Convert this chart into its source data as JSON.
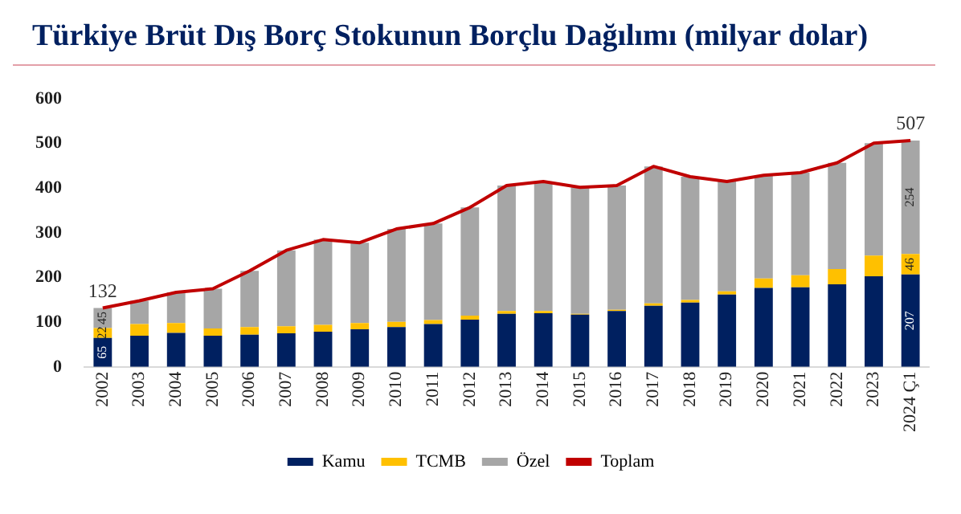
{
  "chart_data": {
    "type": "bar",
    "title": "Türkiye Brüt Dış Borç Stokunun Borçlu Dağılımı (milyar dolar)",
    "categories": [
      "2002",
      "2003",
      "2004",
      "2005",
      "2006",
      "2007",
      "2008",
      "2009",
      "2010",
      "2011",
      "2012",
      "2013",
      "2014",
      "2015",
      "2016",
      "2017",
      "2018",
      "2019",
      "2020",
      "2021",
      "2022",
      "2023",
      "2024 Ç1"
    ],
    "stacked": true,
    "ylim": [
      0,
      600
    ],
    "yticks": [
      0,
      100,
      200,
      300,
      400,
      500,
      600
    ],
    "grid": false,
    "legend": "bottom",
    "series": [
      {
        "name": "Kamu",
        "color": "#002060",
        "values": [
          65,
          70,
          76,
          70,
          72,
          75,
          79,
          84,
          89,
          96,
          106,
          119,
          120,
          117,
          125,
          137,
          144,
          162,
          177,
          178,
          185,
          203,
          207
        ],
        "value_labels": [
          "65",
          null,
          null,
          null,
          null,
          null,
          null,
          null,
          null,
          null,
          null,
          null,
          null,
          null,
          null,
          null,
          null,
          null,
          null,
          null,
          null,
          null,
          "207"
        ]
      },
      {
        "name": "TCMB",
        "color": "#ffc000",
        "values": [
          22,
          26,
          22,
          16,
          17,
          16,
          15,
          14,
          12,
          9,
          9,
          6,
          5,
          2,
          3,
          5,
          6,
          7,
          21,
          27,
          34,
          46,
          46
        ],
        "value_labels": [
          "22",
          null,
          null,
          null,
          null,
          null,
          null,
          null,
          null,
          null,
          null,
          null,
          null,
          null,
          null,
          null,
          null,
          null,
          null,
          null,
          null,
          null,
          "46"
        ]
      },
      {
        "name": "Özel",
        "color": "#a6a6a6",
        "values": [
          45,
          52,
          69,
          89,
          126,
          170,
          191,
          180,
          208,
          216,
          242,
          281,
          290,
          283,
          278,
          307,
          276,
          246,
          231,
          230,
          238,
          252,
          254
        ],
        "value_labels": [
          "45",
          null,
          null,
          null,
          null,
          null,
          null,
          null,
          null,
          null,
          null,
          null,
          null,
          null,
          null,
          null,
          null,
          null,
          null,
          null,
          null,
          null,
          "254"
        ]
      },
      {
        "name": "Toplam",
        "type": "line",
        "color": "#c00000",
        "values": [
          132,
          148,
          167,
          175,
          215,
          261,
          285,
          278,
          309,
          321,
          357,
          406,
          415,
          402,
          406,
          449,
          426,
          415,
          429,
          435,
          457,
          501,
          507
        ],
        "value_labels": [
          "132",
          null,
          null,
          null,
          null,
          null,
          null,
          null,
          null,
          null,
          null,
          null,
          null,
          null,
          null,
          null,
          null,
          null,
          null,
          null,
          null,
          null,
          "507"
        ]
      }
    ]
  }
}
